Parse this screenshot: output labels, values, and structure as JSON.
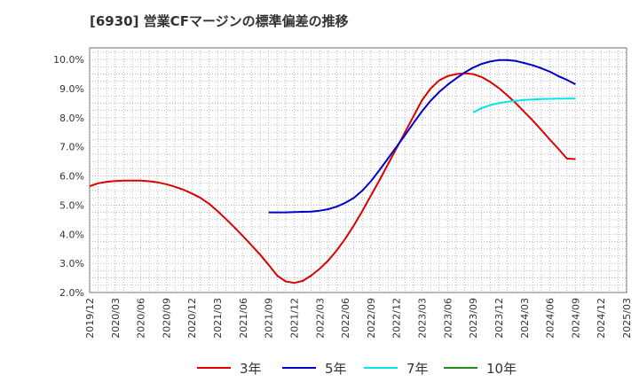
{
  "title": "[6930]  営業CFマージンの標準偏差の推移",
  "chart_data": {
    "type": "line",
    "title": "[6930]  営業CFマージンの標準偏差の推移",
    "xlabel": "",
    "ylabel": "",
    "x_tick_labels": [
      "2019/12",
      "2020/03",
      "2020/06",
      "2020/09",
      "2020/12",
      "2021/03",
      "2021/06",
      "2021/09",
      "2021/12",
      "2022/03",
      "2022/06",
      "2022/09",
      "2022/12",
      "2023/03",
      "2023/06",
      "2023/09",
      "2023/12",
      "2024/03",
      "2024/06",
      "2024/09",
      "2024/12",
      "2025/03"
    ],
    "y_tick_labels": [
      "2.0%",
      "3.0%",
      "4.0%",
      "5.0%",
      "6.0%",
      "7.0%",
      "8.0%",
      "9.0%",
      "10.0%"
    ],
    "ylim": [
      2.0,
      10.4
    ],
    "grid": true,
    "legend_position": "bottom",
    "series": [
      {
        "name": "3年",
        "color": "#dd0000",
        "x": [
          "2019/12",
          "2020/01",
          "2020/02",
          "2020/03",
          "2020/04",
          "2020/05",
          "2020/06",
          "2020/07",
          "2020/08",
          "2020/09",
          "2020/10",
          "2020/11",
          "2020/12",
          "2021/01",
          "2021/02",
          "2021/03",
          "2021/04",
          "2021/05",
          "2021/06",
          "2021/07",
          "2021/08",
          "2021/09",
          "2021/10",
          "2021/11",
          "2021/12",
          "2022/01",
          "2022/02",
          "2022/03",
          "2022/04",
          "2022/05",
          "2022/06",
          "2022/07",
          "2022/08",
          "2022/09",
          "2022/10",
          "2022/11",
          "2022/12",
          "2023/01",
          "2023/02",
          "2023/03",
          "2023/04",
          "2023/05",
          "2023/06",
          "2023/07",
          "2023/08",
          "2023/09",
          "2023/10",
          "2023/11",
          "2023/12",
          "2024/01",
          "2024/02",
          "2024/03",
          "2024/04",
          "2024/05",
          "2024/06",
          "2024/07",
          "2024/08",
          "2024/09"
        ],
        "values": [
          5.65,
          5.75,
          5.8,
          5.83,
          5.84,
          5.84,
          5.84,
          5.82,
          5.78,
          5.72,
          5.63,
          5.53,
          5.4,
          5.25,
          5.05,
          4.8,
          4.52,
          4.23,
          3.93,
          3.62,
          3.3,
          2.95,
          2.58,
          2.38,
          2.33,
          2.4,
          2.58,
          2.82,
          3.1,
          3.45,
          3.85,
          4.3,
          4.8,
          5.33,
          5.85,
          6.4,
          6.95,
          7.5,
          8.05,
          8.6,
          9.0,
          9.28,
          9.43,
          9.5,
          9.53,
          9.5,
          9.4,
          9.23,
          9.02,
          8.77,
          8.5,
          8.2,
          7.9,
          7.58,
          7.25,
          6.93,
          6.6,
          6.58
        ]
      },
      {
        "name": "5年",
        "color": "#0000cc",
        "x": [
          "2021/09",
          "2021/10",
          "2021/11",
          "2021/12",
          "2022/01",
          "2022/02",
          "2022/03",
          "2022/04",
          "2022/05",
          "2022/06",
          "2022/07",
          "2022/08",
          "2022/09",
          "2022/10",
          "2022/11",
          "2022/12",
          "2023/01",
          "2023/02",
          "2023/03",
          "2023/04",
          "2023/05",
          "2023/06",
          "2023/07",
          "2023/08",
          "2023/09",
          "2023/10",
          "2023/11",
          "2023/12",
          "2024/01",
          "2024/02",
          "2024/03",
          "2024/04",
          "2024/05",
          "2024/06",
          "2024/07",
          "2024/08",
          "2024/09"
        ],
        "values": [
          4.75,
          4.75,
          4.75,
          4.76,
          4.77,
          4.78,
          4.81,
          4.86,
          4.95,
          5.08,
          5.25,
          5.5,
          5.82,
          6.2,
          6.6,
          7.0,
          7.4,
          7.82,
          8.22,
          8.58,
          8.88,
          9.13,
          9.35,
          9.55,
          9.72,
          9.85,
          9.93,
          9.98,
          9.98,
          9.95,
          9.88,
          9.8,
          9.7,
          9.58,
          9.43,
          9.3,
          9.15
        ]
      },
      {
        "name": "7年",
        "color": "#00e5ee",
        "x": [
          "2023/09",
          "2023/10",
          "2023/11",
          "2023/12",
          "2024/01",
          "2024/02",
          "2024/03",
          "2024/04",
          "2024/05",
          "2024/06",
          "2024/07",
          "2024/08",
          "2024/09"
        ],
        "values": [
          8.18,
          8.33,
          8.43,
          8.5,
          8.55,
          8.58,
          8.61,
          8.63,
          8.64,
          8.65,
          8.66,
          8.66,
          8.66
        ]
      },
      {
        "name": "10年",
        "color": "#228b22",
        "x": [],
        "values": []
      }
    ]
  },
  "colors": {
    "grid": "#aaaaaa",
    "axis": "#666666",
    "text": "#333333"
  }
}
